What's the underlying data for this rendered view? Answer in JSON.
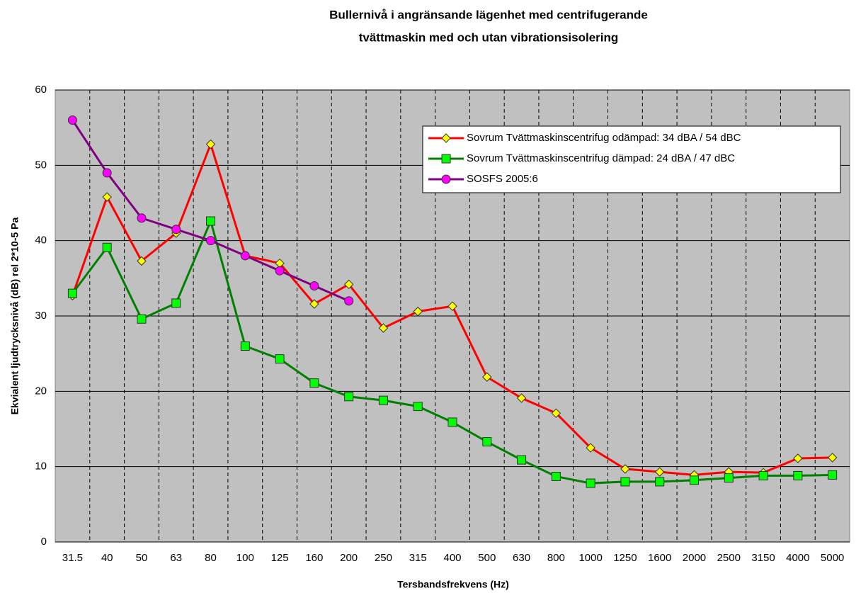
{
  "chart_data": {
    "type": "line",
    "title": [
      "Bullernivå i angränsande lägenhet med centrifugerande",
      "tvättmaskin med och utan vibrationsisolering"
    ],
    "x_label": "Tersbandsfrekvens (Hz)",
    "y_label": "Ekvialent ljudtrycksnivå (dB) rel 2*10-5 Pa",
    "categories": [
      "31.5",
      "40",
      "50",
      "63",
      "80",
      "100",
      "125",
      "160",
      "200",
      "250",
      "315",
      "400",
      "500",
      "630",
      "800",
      "1000",
      "1250",
      "1600",
      "2000",
      "2500",
      "3150",
      "4000",
      "5000"
    ],
    "series": [
      {
        "name": "Sovrum Tvättmaskinscentrifug odämpad: 34 dBA / 54 dBC",
        "color": "#ff0000",
        "marker": "diamond",
        "marker_color": "#ffff00",
        "values": [
          32.7,
          45.8,
          37.3,
          41,
          52.8,
          38,
          37,
          31.6,
          34.2,
          28.4,
          30.6,
          31.3,
          21.9,
          19.1,
          17.1,
          12.5,
          9.7,
          9.3,
          8.9,
          9.3,
          9.2,
          11.1,
          11.2
        ]
      },
      {
        "name": "Sovrum Tvättmaskinscentrifug dämpad: 24 dBA / 47 dBC",
        "color": "#008000",
        "marker": "square",
        "marker_color": "#00ff00",
        "values": [
          33,
          39.1,
          29.6,
          31.7,
          42.6,
          26,
          24.3,
          21.1,
          19.3,
          18.8,
          18,
          15.9,
          13.3,
          10.9,
          8.7,
          7.8,
          8,
          8,
          8.2,
          8.5,
          8.8,
          8.8,
          8.9
        ]
      },
      {
        "name": "SOSFS 2005:6",
        "color": "#800080",
        "marker": "circle",
        "marker_color": "#ff00ff",
        "values": [
          56,
          49,
          43,
          41.5,
          40,
          38,
          36,
          34,
          32,
          null,
          null,
          null,
          null,
          null,
          null,
          null,
          null,
          null,
          null,
          null,
          null,
          null,
          null
        ]
      }
    ],
    "ylim": [
      0,
      60
    ],
    "yticks": [
      0,
      10,
      20,
      30,
      40,
      50,
      60
    ],
    "grid": true,
    "legend": "upper right"
  }
}
